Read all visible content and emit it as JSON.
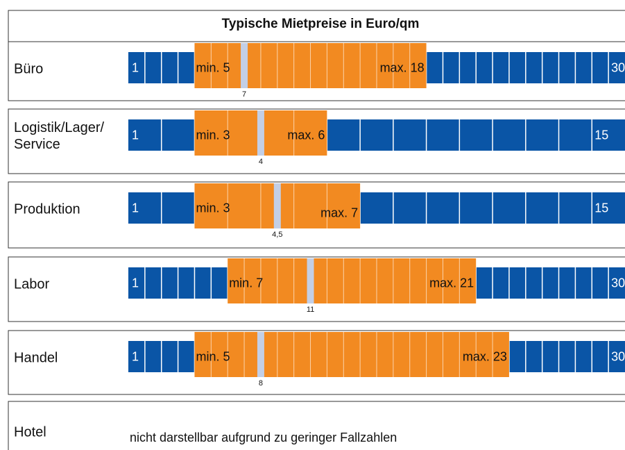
{
  "title": "Typische Mietpreise in Euro/qm",
  "rows": [
    {
      "label": "Büro",
      "scale_start": 1,
      "scale_end": 30,
      "min": 5,
      "min_label": "min. 5",
      "max": 18,
      "max_label": "max. 18",
      "median": 7
    },
    {
      "label": "Logistik/Lager/\nService",
      "scale_start": 1,
      "scale_end": 15,
      "min": 3,
      "min_label": "min. 3",
      "max": 6,
      "max_label": "max. 6",
      "median": 4
    },
    {
      "label": "Produktion",
      "scale_start": 1,
      "scale_end": 15,
      "min": 3,
      "min_label": "min. 3",
      "max": 7,
      "max_label": "max. 7",
      "median": 4.5,
      "median_label": "4,5"
    },
    {
      "label": "Labor",
      "scale_start": 1,
      "scale_end": 30,
      "min": 7,
      "min_label": "min. 7",
      "max": 21,
      "max_label": "max. 21",
      "median": 11
    },
    {
      "label": "Handel",
      "scale_start": 1,
      "scale_end": 30,
      "min": 5,
      "min_label": "min. 5",
      "max": 23,
      "max_label": "max. 23",
      "median": 8
    }
  ],
  "hotel": {
    "label": "Hotel",
    "note": "nicht darstellbar aufgrund zu geringer Fallzahlen"
  }
}
